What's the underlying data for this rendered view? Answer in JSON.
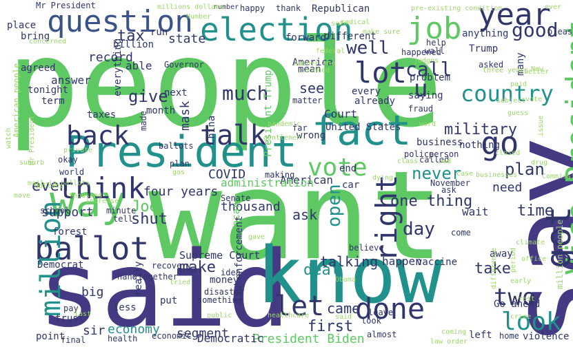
{
  "palette": {
    "background": "#ffffff",
    "green": "#5ec962",
    "light_green": "#9cd669",
    "teal": "#21918c",
    "blue": "#3b528b",
    "navy": "#30356b",
    "indigo": "#443983"
  },
  "words": [
    {
      "text": "people",
      "color": "green"
    },
    {
      "text": "want",
      "color": "green"
    },
    {
      "text": "say",
      "color": "indigo"
    },
    {
      "text": "said",
      "color": "indigo"
    },
    {
      "text": "know",
      "color": "teal"
    },
    {
      "text": "President",
      "color": "teal"
    },
    {
      "text": "fact",
      "color": "teal"
    },
    {
      "text": "Vice President",
      "color": "green"
    },
    {
      "text": "way",
      "color": "green"
    },
    {
      "text": "question",
      "color": "blue"
    },
    {
      "text": "election",
      "color": "teal"
    },
    {
      "text": "year",
      "color": "navy"
    },
    {
      "text": "job",
      "color": "green"
    },
    {
      "text": "ballot",
      "color": "navy"
    },
    {
      "text": "think",
      "color": "navy"
    },
    {
      "text": "got",
      "color": "navy"
    },
    {
      "text": "go",
      "color": "navy"
    },
    {
      "text": "talk",
      "color": "navy"
    },
    {
      "text": "back",
      "color": "navy"
    },
    {
      "text": "lot",
      "color": "navy"
    },
    {
      "text": "million",
      "color": "teal"
    },
    {
      "text": "done",
      "color": "navy"
    },
    {
      "text": "look",
      "color": "teal"
    },
    {
      "text": "right",
      "color": "navy"
    },
    {
      "text": "vote",
      "color": "green"
    },
    {
      "text": "let",
      "color": "navy"
    },
    {
      "text": "two",
      "color": "navy"
    },
    {
      "text": "u",
      "color": "navy"
    },
    {
      "text": "country",
      "color": "teal"
    },
    {
      "text": "much",
      "color": "navy"
    },
    {
      "text": "call",
      "color": "navy"
    },
    {
      "text": "good",
      "color": "navy"
    },
    {
      "text": "well",
      "color": "navy"
    },
    {
      "text": "tax",
      "color": "navy"
    },
    {
      "text": "military",
      "color": "navy"
    },
    {
      "text": "first",
      "color": "navy"
    },
    {
      "text": "Joe",
      "color": "green"
    },
    {
      "text": "shut",
      "color": "navy"
    },
    {
      "text": "day",
      "color": "navy"
    },
    {
      "text": "one thing",
      "color": "navy"
    },
    {
      "text": "open",
      "color": "teal"
    },
    {
      "text": "never",
      "color": "teal"
    },
    {
      "text": "plan",
      "color": "navy"
    },
    {
      "text": "time",
      "color": "navy"
    },
    {
      "text": "take",
      "color": "navy"
    },
    {
      "text": "deal",
      "color": "teal"
    },
    {
      "text": "talking",
      "color": "navy"
    },
    {
      "text": "make",
      "color": "navy"
    },
    {
      "text": "came",
      "color": "navy"
    },
    {
      "text": "give",
      "color": "navy"
    },
    {
      "text": "see",
      "color": "navy"
    },
    {
      "text": "even",
      "color": "navy"
    },
    {
      "text": "four years",
      "color": "navy"
    },
    {
      "text": "COVID",
      "color": "navy"
    },
    {
      "text": "mask",
      "color": "navy"
    },
    {
      "text": "economy",
      "color": "teal"
    },
    {
      "text": "segment",
      "color": "navy"
    },
    {
      "text": "sir",
      "color": "navy"
    },
    {
      "text": "ask",
      "color": "navy"
    },
    {
      "text": "thousand",
      "color": "navy"
    },
    {
      "text": "President Biden",
      "color": "green"
    },
    {
      "text": "Supreme Court",
      "color": "navy"
    },
    {
      "text": "support",
      "color": "navy"
    },
    {
      "text": "state",
      "color": "navy"
    },
    {
      "text": "record",
      "color": "navy"
    },
    {
      "text": "American",
      "color": "navy"
    },
    {
      "text": "answer",
      "color": "navy"
    },
    {
      "text": "able",
      "color": "navy"
    },
    {
      "text": "Democratic",
      "color": "navy"
    },
    {
      "text": "administration",
      "color": "green"
    },
    {
      "text": "wait",
      "color": "navy"
    },
    {
      "text": "need",
      "color": "navy"
    },
    {
      "text": "big",
      "color": "navy"
    },
    {
      "text": "happen",
      "color": "navy"
    },
    {
      "text": "left",
      "color": "navy"
    },
    {
      "text": "Go ahead",
      "color": "navy"
    },
    {
      "text": "United States",
      "color": "navy"
    },
    {
      "text": "Court",
      "color": "navy"
    },
    {
      "text": "saying",
      "color": "navy"
    },
    {
      "text": "problem",
      "color": "navy"
    },
    {
      "text": "Republican",
      "color": "navy"
    },
    {
      "text": "Trump",
      "color": "navy"
    },
    {
      "text": "billion",
      "color": "navy"
    },
    {
      "text": "place",
      "color": "navy"
    },
    {
      "text": "bring",
      "color": "navy"
    },
    {
      "text": "forward",
      "color": "navy"
    },
    {
      "text": "different",
      "color": "navy"
    },
    {
      "text": "run",
      "color": "navy"
    },
    {
      "text": "mean",
      "color": "navy"
    },
    {
      "text": "every",
      "color": "navy"
    },
    {
      "text": "already",
      "color": "navy"
    },
    {
      "text": "President Trump",
      "color": "green"
    },
    {
      "text": "month",
      "color": "navy"
    },
    {
      "text": "next",
      "color": "navy"
    },
    {
      "text": "anything",
      "color": "navy"
    },
    {
      "text": "many",
      "color": "navy"
    },
    {
      "text": "asked",
      "color": "navy"
    },
    {
      "text": "tonight",
      "color": "navy"
    },
    {
      "text": "term",
      "color": "navy"
    },
    {
      "text": "agreed",
      "color": "navy"
    },
    {
      "text": "everything",
      "color": "navy"
    },
    {
      "text": "Obamacare",
      "color": "green"
    },
    {
      "text": "trust",
      "color": "navy"
    },
    {
      "text": "less",
      "color": "navy"
    },
    {
      "text": "forest",
      "color": "navy"
    },
    {
      "text": "school",
      "color": "navy"
    },
    {
      "text": "China",
      "color": "navy"
    },
    {
      "text": "taxes",
      "color": "navy"
    },
    {
      "text": "okay",
      "color": "navy"
    },
    {
      "text": "point",
      "color": "navy"
    },
    {
      "text": "Democrat",
      "color": "navy"
    },
    {
      "text": "vaccine",
      "color": "navy"
    },
    {
      "text": "nothing",
      "color": "navy"
    },
    {
      "text": "law enforcement",
      "color": "navy"
    },
    {
      "text": "really",
      "color": "navy"
    },
    {
      "text": "put",
      "color": "navy"
    },
    {
      "text": "money",
      "color": "navy"
    },
    {
      "text": "business",
      "color": "navy"
    },
    {
      "text": "home",
      "color": "navy"
    },
    {
      "text": "violence",
      "color": "navy"
    },
    {
      "text": "almost",
      "color": "navy"
    },
    {
      "text": "leave",
      "color": "navy"
    },
    {
      "text": "economic",
      "color": "navy"
    },
    {
      "text": "health",
      "color": "navy"
    },
    {
      "text": "world",
      "color": "navy"
    },
    {
      "text": "happy",
      "color": "navy"
    },
    {
      "text": "thank",
      "color": "navy"
    },
    {
      "text": "Mr President",
      "color": "navy"
    },
    {
      "text": "number",
      "color": "navy"
    },
    {
      "text": "America",
      "color": "navy"
    },
    {
      "text": "wrong",
      "color": "navy"
    },
    {
      "text": "far",
      "color": "navy"
    },
    {
      "text": "police",
      "color": "navy"
    },
    {
      "text": "person",
      "color": "navy"
    },
    {
      "text": "believe",
      "color": "navy"
    },
    {
      "text": "come",
      "color": "navy"
    },
    {
      "text": "away",
      "color": "navy"
    },
    {
      "text": "minute",
      "color": "navy"
    },
    {
      "text": "tell",
      "color": "navy"
    },
    {
      "text": "recovery",
      "color": "navy"
    },
    {
      "text": "together",
      "color": "navy"
    },
    {
      "text": "Senate",
      "color": "navy"
    },
    {
      "text": "car",
      "color": "navy"
    },
    {
      "text": "end",
      "color": "navy"
    },
    {
      "text": "matter",
      "color": "navy"
    },
    {
      "text": "Governor",
      "color": "navy"
    },
    {
      "text": "disaster",
      "color": "navy"
    },
    {
      "text": "final",
      "color": "navy"
    },
    {
      "text": "pay",
      "color": "navy"
    },
    {
      "text": "ask",
      "color": "navy"
    },
    {
      "text": "happened",
      "color": "navy"
    },
    {
      "text": "made",
      "color": "navy"
    },
    {
      "text": "called",
      "color": "navy"
    },
    {
      "text": "fraud",
      "color": "navy"
    },
    {
      "text": "November",
      "color": "navy"
    },
    {
      "text": "wall",
      "color": "navy"
    },
    {
      "text": "help",
      "color": "navy"
    },
    {
      "text": "plan",
      "color": "navy"
    },
    {
      "text": "making",
      "color": "navy"
    },
    {
      "text": "look",
      "color": "navy"
    },
    {
      "text": "please",
      "color": "navy"
    },
    {
      "text": "something",
      "color": "navy"
    },
    {
      "text": "hand",
      "color": "navy"
    },
    {
      "text": "idea",
      "color": "navy"
    },
    {
      "text": "ballots",
      "color": "navy"
    },
    {
      "text": "American people",
      "color": "light_green"
    },
    {
      "text": "million people",
      "color": "light_green"
    },
    {
      "text": "Mr President",
      "color": "light_green"
    },
    {
      "text": "pre-existing condition",
      "color": "light_green"
    },
    {
      "text": "millions dollars",
      "color": "light_green"
    },
    {
      "text": "Number",
      "color": "light_green"
    },
    {
      "text": "make sure",
      "color": "light_green"
    },
    {
      "text": "federal",
      "color": "light_green"
    },
    {
      "text": "judges",
      "color": "light_green"
    },
    {
      "text": "better",
      "color": "light_green"
    },
    {
      "text": "paid",
      "color": "light_green"
    },
    {
      "text": "ever",
      "color": "light_green"
    },
    {
      "text": "three years",
      "color": "light_green"
    },
    {
      "text": "vote",
      "color": "light_green"
    },
    {
      "text": "suburb",
      "color": "light_green"
    },
    {
      "text": "mail-in ballots",
      "color": "light_green"
    },
    {
      "text": "healthcare",
      "color": "light_green"
    },
    {
      "text": "gentlemen",
      "color": "light_green"
    },
    {
      "text": "private",
      "color": "light_green"
    },
    {
      "text": "thousand",
      "color": "light_green"
    },
    {
      "text": "climate",
      "color": "light_green"
    },
    {
      "text": "dollars",
      "color": "light_green"
    },
    {
      "text": "office",
      "color": "light_green"
    },
    {
      "text": "drug",
      "color": "light_green"
    },
    {
      "text": "issue",
      "color": "light_green"
    },
    {
      "text": "closed",
      "color": "light_green"
    },
    {
      "text": "difference",
      "color": "light_green"
    },
    {
      "text": "early",
      "color": "light_green"
    },
    {
      "text": "law order",
      "color": "light_green"
    },
    {
      "text": "coming",
      "color": "light_green"
    },
    {
      "text": "concerned",
      "color": "light_green"
    },
    {
      "text": "New",
      "color": "light_green"
    },
    {
      "text": "Obama",
      "color": "light_green"
    },
    {
      "text": "period",
      "color": "light_green"
    },
    {
      "text": "rest",
      "color": "light_green"
    },
    {
      "text": "crime",
      "color": "light_green"
    },
    {
      "text": "increase",
      "color": "light_green"
    },
    {
      "text": "move",
      "color": "light_green"
    },
    {
      "text": "watch",
      "color": "light_green"
    },
    {
      "text": "counted",
      "color": "light_green"
    },
    {
      "text": "number one",
      "color": "light_green"
    },
    {
      "text": "word",
      "color": "light_green"
    },
    {
      "text": "pandemic",
      "color": "light_green"
    },
    {
      "text": "bad",
      "color": "light_green"
    },
    {
      "text": "public",
      "color": "light_green"
    },
    {
      "text": "gas",
      "color": "light_green"
    },
    {
      "text": "class",
      "color": "light_green"
    },
    {
      "text": "said",
      "color": "light_green"
    },
    {
      "text": "radical",
      "color": "light_green"
    },
    {
      "text": "subject",
      "color": "light_green"
    },
    {
      "text": "guess",
      "color": "light_green"
    },
    {
      "text": "Commission",
      "color": "light_green"
    },
    {
      "text": "safe",
      "color": "light_green"
    },
    {
      "text": "businesses",
      "color": "light_green"
    },
    {
      "text": "case",
      "color": "light_green"
    },
    {
      "text": "last",
      "color": "light_green"
    },
    {
      "text": "gave",
      "color": "light_green"
    },
    {
      "text": "dying",
      "color": "light_green"
    },
    {
      "text": "tried",
      "color": "light_green"
    }
  ]
}
